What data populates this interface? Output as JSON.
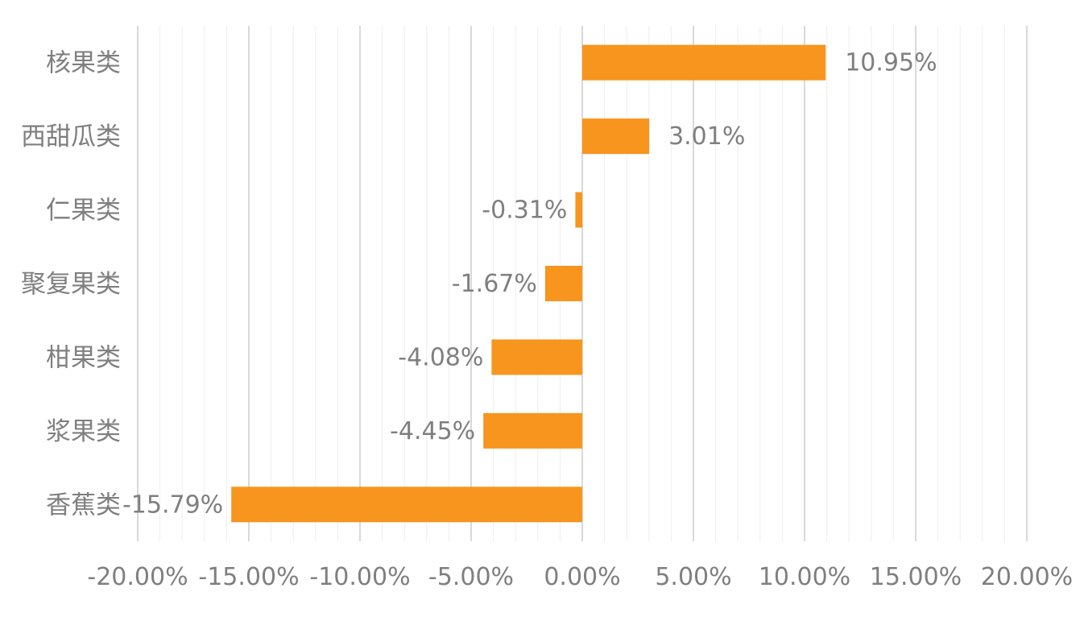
{
  "chart_data": {
    "type": "bar",
    "orientation": "horizontal",
    "categories": [
      "核果类",
      "西甜瓜类",
      "仁果类",
      "聚复果类",
      "柑果类",
      "浆果类",
      "香蕉类"
    ],
    "values": [
      10.95,
      3.01,
      -0.31,
      -1.67,
      -4.08,
      -4.45,
      -15.79
    ],
    "value_labels": [
      "10.95%",
      "3.01%",
      "-0.31%",
      "-1.67%",
      "-4.08%",
      "-4.45%",
      "-15.79%"
    ],
    "xlim": [
      -20,
      20
    ],
    "x_ticks": [
      -20,
      -15,
      -10,
      -5,
      0,
      5,
      10,
      15,
      20
    ],
    "x_tick_labels": [
      "-20.00%",
      "-15.00%",
      "-10.00%",
      "-5.00%",
      "0.00%",
      "5.00%",
      "10.00%",
      "15.00%",
      "20.00%"
    ],
    "grid": true,
    "minor_grid": true,
    "bar_color": "#f7951e",
    "grid_major_color": "#d9d9d9",
    "grid_minor_color": "#eeeeee",
    "text_color": "#7f7f7f",
    "title": "",
    "xlabel": "",
    "ylabel": ""
  }
}
